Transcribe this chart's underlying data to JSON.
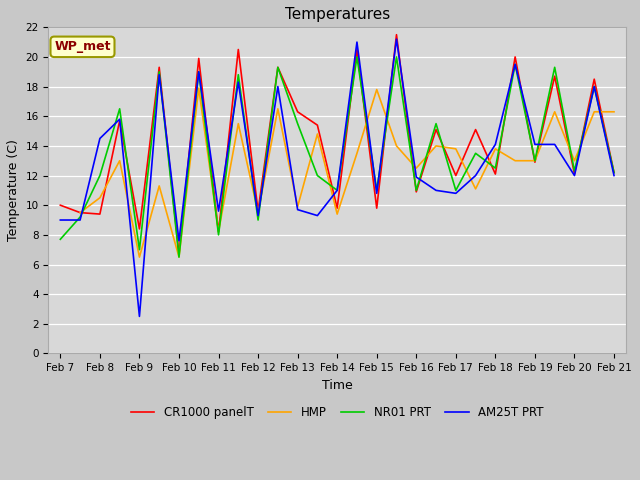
{
  "title": "Temperatures",
  "xlabel": "Time",
  "ylabel": "Temperature (C)",
  "ylim": [
    0,
    22
  ],
  "fig_bg": "#c8c8c8",
  "plot_bg": "#d8d8d8",
  "annotation_text": "WP_met",
  "annotation_fg": "#8b0000",
  "annotation_bg": "#ffffcc",
  "annotation_border": "#999900",
  "x_labels": [
    "Feb 7",
    "Feb 8",
    "Feb 9",
    "Feb 10",
    "Feb 11",
    "Feb 12",
    "Feb 13",
    "Feb 14",
    "Feb 15",
    "Feb 16",
    "Feb 17",
    "Feb 18",
    "Feb 19",
    "Feb 20",
    "Feb 21"
  ],
  "cr_x": [
    0.0,
    0.5,
    1.0,
    1.5,
    2.0,
    2.5,
    3.0,
    3.5,
    4.0,
    4.5,
    5.0,
    5.5,
    6.0,
    6.5,
    7.0,
    7.5,
    8.0,
    8.5,
    9.0,
    9.5,
    10.0,
    10.5,
    11.0,
    11.5,
    12.0,
    12.5,
    13.0,
    13.5,
    14.0
  ],
  "cr_y": [
    10.0,
    9.5,
    9.4,
    15.7,
    8.4,
    19.3,
    6.7,
    19.9,
    8.2,
    20.5,
    9.6,
    19.3,
    16.3,
    15.4,
    9.8,
    20.5,
    9.8,
    21.5,
    10.9,
    15.1,
    12.0,
    15.1,
    12.1,
    20.0,
    12.9,
    18.7,
    12.1,
    18.5,
    12.2
  ],
  "hmp_x": [
    0.5,
    1.0,
    1.5,
    2.0,
    2.5,
    3.0,
    3.5,
    4.0,
    4.5,
    5.0,
    5.5,
    6.0,
    6.5,
    7.0,
    7.5,
    8.0,
    8.5,
    9.0,
    9.5,
    10.0,
    10.5,
    11.0,
    11.5,
    12.0,
    12.5,
    13.0,
    13.5,
    14.0
  ],
  "hmp_y": [
    9.5,
    10.5,
    13.0,
    6.5,
    11.3,
    6.5,
    17.9,
    8.2,
    15.5,
    9.5,
    16.5,
    9.9,
    14.8,
    9.4,
    13.5,
    17.8,
    14.0,
    12.5,
    14.0,
    13.8,
    11.1,
    13.8,
    13.0,
    13.0,
    16.3,
    13.0,
    16.3,
    16.3
  ],
  "nr_x": [
    0.0,
    0.5,
    1.0,
    1.5,
    2.0,
    2.5,
    3.0,
    3.5,
    4.0,
    4.5,
    5.0,
    5.5,
    6.0,
    6.5,
    7.0,
    7.5,
    8.0,
    8.5,
    9.0,
    9.5,
    10.0,
    10.5,
    11.0,
    11.5,
    12.0,
    12.5,
    13.0,
    13.5,
    14.0
  ],
  "nr_y": [
    7.7,
    9.2,
    12.0,
    16.5,
    7.0,
    19.0,
    6.5,
    19.0,
    8.0,
    18.8,
    9.0,
    19.3,
    15.5,
    12.0,
    11.0,
    20.0,
    11.0,
    20.0,
    11.0,
    15.5,
    11.0,
    13.5,
    12.5,
    19.5,
    13.0,
    19.3,
    12.3,
    18.0,
    12.2
  ],
  "am_x": [
    0.0,
    0.5,
    1.0,
    1.5,
    2.0,
    2.5,
    3.0,
    3.5,
    4.0,
    4.5,
    5.0,
    5.5,
    6.0,
    6.5,
    7.0,
    7.5,
    8.0,
    8.5,
    9.0,
    9.5,
    10.0,
    10.5,
    11.0,
    11.5,
    12.0,
    12.5,
    13.0,
    13.5,
    14.0
  ],
  "am_y": [
    9.0,
    9.0,
    14.5,
    15.8,
    2.5,
    18.8,
    7.6,
    19.0,
    9.6,
    18.3,
    9.3,
    18.0,
    9.7,
    9.3,
    11.0,
    21.0,
    10.8,
    21.2,
    11.9,
    11.0,
    10.8,
    12.0,
    14.1,
    19.5,
    14.1,
    14.1,
    12.0,
    18.0,
    12.0
  ],
  "series_colors": [
    "#ff0000",
    "#ffa500",
    "#00cc00",
    "#0000ff"
  ],
  "series_labels": [
    "CR1000 panelT",
    "HMP",
    "NR01 PRT",
    "AM25T PRT"
  ],
  "linewidth": 1.2,
  "tick_fontsize": 7.5,
  "axis_label_fontsize": 9,
  "title_fontsize": 11
}
